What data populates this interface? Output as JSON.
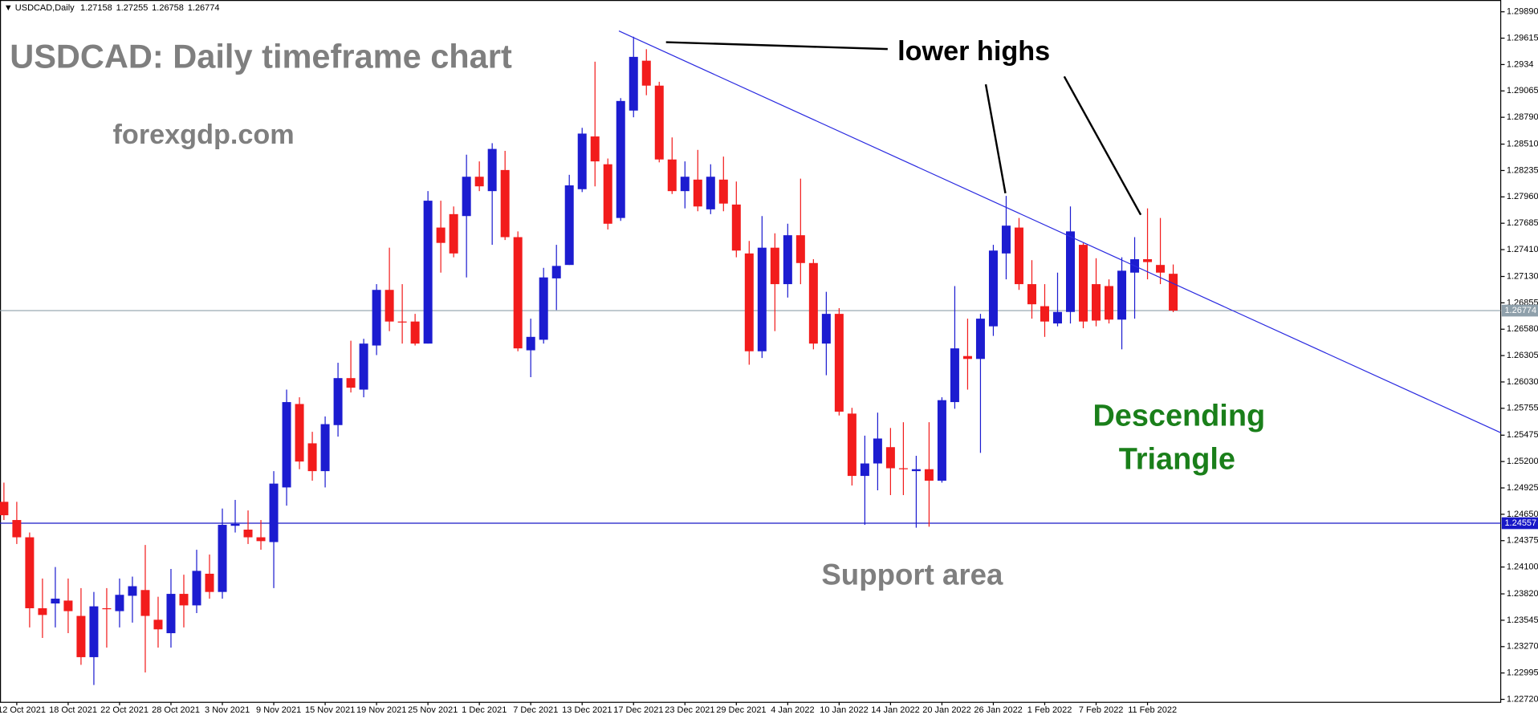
{
  "chart_data": {
    "type": "candlestick",
    "symbol": "USDCAD,Daily",
    "title": "USDCAD: Daily timeframe chart",
    "site": "forexgdp.com",
    "note": "lower highs",
    "pattern": [
      "Descending",
      "Triangle"
    ],
    "support_label": "Support area",
    "up_color": "#1c1cd0",
    "down_color": "#f21c1c",
    "trendline": {
      "color": "#2a2ae0",
      "x": [
        47.86,
        116.5
      ],
      "y": [
        1.2969,
        1.255
      ]
    },
    "price_lines": [
      {
        "value": 1.24557,
        "color": "#1818c8"
      },
      {
        "value": 1.26774,
        "color": "#8fa0ab"
      }
    ],
    "categories": [
      null,
      "12 Oct 2021",
      null,
      null,
      null,
      "18 Oct 2021",
      null,
      null,
      null,
      "22 Oct 2021",
      null,
      null,
      null,
      "28 Oct 2021",
      null,
      null,
      null,
      "3 Nov 2021",
      null,
      null,
      null,
      "9 Nov 2021",
      null,
      null,
      null,
      "15 Nov 2021",
      null,
      null,
      null,
      "19 Nov 2021",
      null,
      null,
      null,
      "25 Nov 2021",
      null,
      null,
      null,
      "1 Dec 2021",
      null,
      null,
      null,
      "7 Dec 2021",
      null,
      null,
      null,
      "13 Dec 2021",
      null,
      null,
      null,
      "17 Dec 2021",
      null,
      null,
      null,
      "23 Dec 2021",
      null,
      null,
      null,
      "29 Dec 2021",
      null,
      null,
      null,
      "4 Jan 2022",
      null,
      null,
      null,
      "10 Jan 2022",
      null,
      null,
      null,
      "14 Jan 2022",
      null,
      null,
      null,
      "20 Jan 2022",
      null,
      null,
      null,
      "26 Jan 2022",
      null,
      null,
      null,
      "1 Feb 2022",
      null,
      null,
      null,
      "7 Feb 2022",
      null,
      null,
      null,
      "11 Feb 2022",
      null,
      null
    ],
    "open": [
      1.2478,
      1.2459,
      1.2441,
      1.2367,
      1.2372,
      1.2375,
      1.2359,
      1.2316,
      1.2367,
      1.2364,
      1.238,
      1.2386,
      1.2355,
      1.2341,
      1.2382,
      1.237,
      1.2403,
      1.2384,
      1.2453,
      1.2449,
      1.2441,
      1.2436,
      1.2493,
      1.258,
      1.2539,
      1.251,
      1.2558,
      1.2607,
      1.2595,
      1.2641,
      1.2699,
      1.2666,
      1.2666,
      1.2643,
      1.2764,
      1.2778,
      1.2776,
      1.2817,
      1.2802,
      1.2824,
      1.2754,
      1.2636,
      1.2647,
      1.2711,
      1.2725,
      1.2804,
      1.2859,
      1.283,
      1.2774,
      1.2886,
      1.2938,
      1.2912,
      1.2835,
      1.2802,
      1.2814,
      1.2783,
      1.2814,
      1.2788,
      1.2737,
      1.2635,
      1.2743,
      1.2705,
      1.2756,
      1.2727,
      1.2643,
      1.2674,
      1.257,
      1.2505,
      1.2518,
      1.2535,
      1.2513,
      1.251,
      1.2512,
      1.25,
      1.2582,
      1.263,
      1.2627,
      1.2661,
      1.2737,
      1.2764,
      1.2705,
      1.2682,
      1.2664,
      1.2676,
      1.2746,
      1.2705,
      1.2703,
      1.2668,
      1.2717,
      1.2731,
      1.2725,
      1.27158
    ],
    "high": [
      1.2498,
      1.2478,
      1.2446,
      1.2398,
      1.241,
      1.2398,
      1.2388,
      1.2384,
      1.2388,
      1.2398,
      1.24,
      1.2433,
      1.2379,
      1.2408,
      1.2402,
      1.2428,
      1.2423,
      1.2471,
      1.248,
      1.2469,
      1.2459,
      1.251,
      1.2595,
      1.2587,
      1.2551,
      1.2567,
      1.2623,
      1.2646,
      1.2648,
      1.2705,
      1.2743,
      1.2705,
      1.2674,
      1.2802,
      1.2792,
      1.2786,
      1.284,
      1.2833,
      1.2852,
      1.2844,
      1.276,
      1.2669,
      1.2722,
      1.2746,
      1.2819,
      1.2868,
      1.2937,
      1.2836,
      1.2899,
      1.2963,
      1.295,
      1.2916,
      1.2858,
      1.2833,
      1.2845,
      1.283,
      1.2838,
      1.2812,
      1.275,
      1.2776,
      1.2758,
      1.2768,
      1.2815,
      1.2731,
      1.2697,
      1.268,
      1.2576,
      1.2547,
      1.2571,
      1.2555,
      1.2561,
      1.2526,
      1.2561,
      1.2587,
      1.2703,
      1.2669,
      1.2674,
      1.2746,
      1.2797,
      1.2774,
      1.273,
      1.2705,
      1.2717,
      1.2786,
      1.2748,
      1.2732,
      1.271,
      1.2733,
      1.2754,
      1.2784,
      1.2774,
      1.27255
    ],
    "low": [
      1.2459,
      1.2434,
      1.2347,
      1.2336,
      1.2347,
      1.2341,
      1.2308,
      1.2287,
      1.2326,
      1.2347,
      1.2352,
      1.23,
      1.2326,
      1.2326,
      1.2347,
      1.2362,
      1.2377,
      1.2377,
      1.2446,
      1.2434,
      1.2428,
      1.2388,
      1.2474,
      1.2512,
      1.25,
      1.2493,
      1.2546,
      1.2592,
      1.2587,
      1.2631,
      1.2656,
      1.2643,
      1.2641,
      1.2643,
      1.2717,
      1.2733,
      1.2712,
      1.2802,
      1.2746,
      1.2751,
      1.2635,
      1.2608,
      1.2643,
      1.2678,
      1.2725,
      1.2801,
      1.2807,
      1.2762,
      1.2771,
      1.2879,
      1.2902,
      1.2832,
      1.2799,
      1.2784,
      1.2781,
      1.2778,
      1.2781,
      1.2733,
      1.2621,
      1.2628,
      1.2656,
      1.2691,
      1.2705,
      1.2637,
      1.261,
      1.2568,
      1.2495,
      1.2454,
      1.249,
      1.2485,
      1.2485,
      1.2451,
      1.2452,
      1.2498,
      1.2575,
      1.2595,
      1.2529,
      1.2651,
      1.271,
      1.2699,
      1.2669,
      1.265,
      1.2661,
      1.2664,
      1.2659,
      1.2661,
      1.2664,
      1.2637,
      1.2669,
      1.271,
      1.2705,
      1.26758
    ],
    "close": [
      1.2464,
      1.2441,
      1.2367,
      1.236,
      1.2377,
      1.2364,
      1.2316,
      1.2369,
      1.2366,
      1.2381,
      1.239,
      1.2359,
      1.2345,
      1.2382,
      1.237,
      1.2406,
      1.2384,
      1.2454,
      1.2455,
      1.2441,
      1.2437,
      1.2497,
      1.2582,
      1.252,
      1.251,
      1.2559,
      1.2607,
      1.2597,
      1.2643,
      1.2699,
      1.2666,
      1.2665,
      1.2643,
      1.2792,
      1.2748,
      1.2737,
      1.2817,
      1.2807,
      1.2846,
      1.2754,
      1.2638,
      1.265,
      1.2712,
      1.2724,
      1.2808,
      1.2862,
      1.2833,
      1.2768,
      1.2896,
      1.2942,
      1.2912,
      1.2835,
      1.2802,
      1.2817,
      1.2786,
      1.2817,
      1.2789,
      1.274,
      1.2635,
      1.2743,
      1.2705,
      1.2756,
      1.2727,
      1.2643,
      1.2674,
      1.2572,
      1.2505,
      1.2518,
      1.2544,
      1.2513,
      1.2512,
      1.2512,
      1.25,
      1.2584,
      1.2638,
      1.2627,
      1.2669,
      1.274,
      1.2766,
      1.2705,
      1.2684,
      1.2666,
      1.2676,
      1.276,
      1.2666,
      1.2667,
      1.2668,
      1.2719,
      1.2731,
      1.2728,
      1.2717,
      1.26774
    ],
    "ylim": [
      1.22689,
      1.30013
    ],
    "yticks": [
      {
        "value": 1.2989,
        "label": "1.29890"
      },
      1.29615,
      1.2934,
      1.29065,
      {
        "value": 1.2879,
        "label": "1.28790"
      },
      {
        "value": 1.2851,
        "label": "1.28510"
      },
      1.28235,
      {
        "value": 1.2796,
        "label": "1.27960"
      },
      1.27685,
      {
        "value": 1.2741,
        "label": "1.27410"
      },
      {
        "value": 1.2713,
        "label": "1.27130"
      },
      1.26855,
      {
        "value": 1.2658,
        "label": "1.26580"
      },
      1.26305,
      {
        "value": 1.2603,
        "label": "1.26030"
      },
      1.25755,
      1.25475,
      {
        "value": 1.252,
        "label": "1.25200"
      },
      1.24925,
      {
        "value": 1.2465,
        "label": "1.24650"
      },
      1.24375,
      {
        "value": 1.241,
        "label": "1.24100"
      },
      {
        "value": 1.2382,
        "label": "1.23820"
      },
      1.23545,
      {
        "value": 1.2327,
        "label": "1.23270"
      },
      1.22995,
      {
        "value": 1.2272,
        "label": "1.22720"
      }
    ]
  }
}
